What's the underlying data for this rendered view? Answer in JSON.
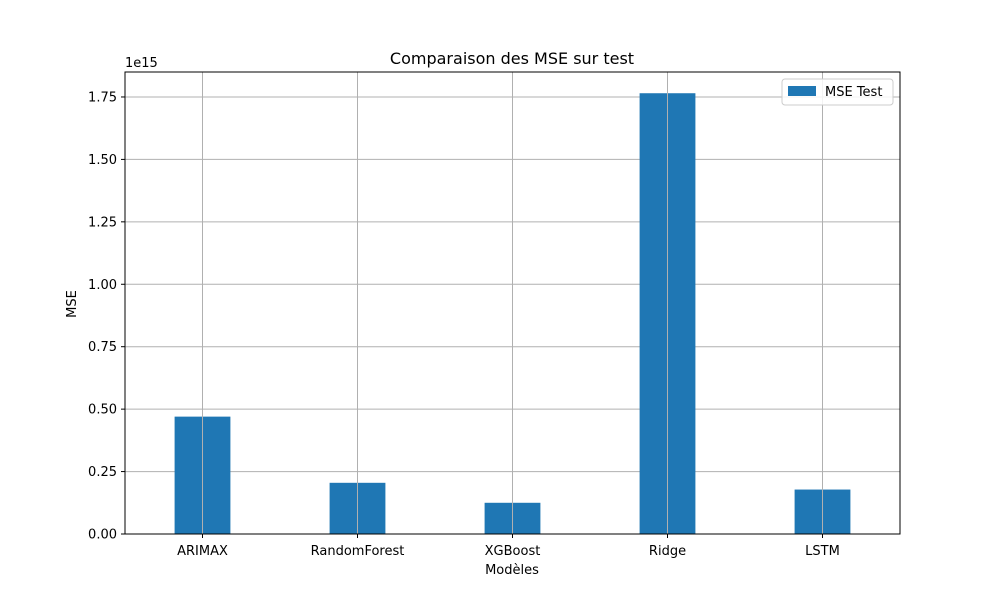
{
  "chart_data": {
    "type": "bar",
    "title": "Comparaison des MSE sur test",
    "xlabel": "Modèles",
    "ylabel": "MSE",
    "offset_label": "1e15",
    "categories": [
      "ARIMAX",
      "RandomForest",
      "XGBoost",
      "Ridge",
      "LSTM"
    ],
    "series": [
      {
        "name": "MSE Test",
        "values": [
          470000000000000.0,
          205000000000000.0,
          125000000000000.0,
          1765000000000000.0,
          178000000000000.0
        ]
      }
    ],
    "ylim": [
      0,
      1850000000000000.0
    ],
    "yticks": [
      0,
      250000000000000.0,
      500000000000000.0,
      750000000000000.0,
      1000000000000000.0,
      1250000000000000.0,
      1500000000000000.0,
      1750000000000000.0
    ],
    "ytick_labels": [
      "0.00",
      "0.25",
      "0.50",
      "0.75",
      "1.00",
      "1.25",
      "1.50",
      "1.75"
    ],
    "grid": true,
    "legend_position": "top-right",
    "colors": {
      "bar": "#1f77b4",
      "grid": "#b0b0b0",
      "axis": "#000000"
    }
  }
}
